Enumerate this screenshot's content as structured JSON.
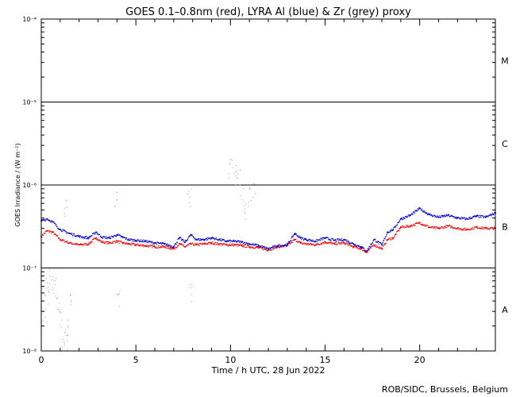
{
  "chart_data": {
    "type": "scatter",
    "title": "GOES 0.1–0.8nm (red), LYRA Al (blue) & Zr (grey) proxy",
    "xlabel": "Time / h UTC, 28 Jun 2022",
    "ylabel": "GOES Irradiance / (W m⁻²)",
    "xlim": [
      0,
      24
    ],
    "ylim": [
      1e-08,
      0.0001
    ],
    "yscale": "log",
    "x_ticks": [
      "0",
      "5",
      "10",
      "15",
      "20"
    ],
    "y_ticks": [
      "10⁻⁸",
      "10⁻⁷",
      "10⁻⁶",
      "10⁻⁵",
      "10⁻⁴"
    ],
    "flare_classes": [
      "A",
      "B",
      "C",
      "M"
    ],
    "class_lines": [
      1e-07,
      1e-06,
      1e-05
    ],
    "colors": {
      "goes": "#ff0000",
      "al": "#0000cc",
      "zr": "#999999"
    },
    "series": [
      {
        "color": "red",
        "x": [
          0.0,
          0.3,
          0.6,
          1.0,
          1.5,
          2.0,
          2.5,
          2.9,
          3.2,
          3.6,
          4.0,
          4.3,
          4.6,
          5.0,
          5.5,
          6.0,
          6.5,
          7.0,
          7.3,
          7.6,
          7.9,
          8.2,
          8.6,
          9.0,
          9.4,
          9.8,
          10.2,
          10.6,
          11.0,
          11.5,
          12.0,
          12.5,
          13.0,
          13.4,
          13.7,
          14.0,
          14.5,
          15.0,
          15.5,
          16.0,
          16.5,
          16.9,
          17.2,
          17.6,
          18.0,
          18.3,
          18.6,
          19.0,
          19.5,
          20.0,
          20.5,
          21.0,
          21.5,
          22.0,
          22.5,
          23.0,
          23.5,
          24.0
        ],
        "values": [
          2.4e-07,
          2.8e-07,
          2.7e-07,
          2.2e-07,
          2e-07,
          1.9e-07,
          1.95e-07,
          2.3e-07,
          2.05e-07,
          2e-07,
          2.1e-07,
          2e-07,
          1.95e-07,
          1.9e-07,
          1.85e-07,
          1.8e-07,
          1.8e-07,
          1.7e-07,
          1.95e-07,
          1.8e-07,
          1.95e-07,
          1.9e-07,
          1.95e-07,
          2e-07,
          1.95e-07,
          1.9e-07,
          1.9e-07,
          1.85e-07,
          1.8e-07,
          1.75e-07,
          1.65e-07,
          1.8e-07,
          1.85e-07,
          2.2e-07,
          2e-07,
          1.95e-07,
          1.9e-07,
          2.05e-07,
          1.95e-07,
          2e-07,
          1.8e-07,
          1.7e-07,
          1.55e-07,
          1.9e-07,
          1.7e-07,
          2.2e-07,
          2.3e-07,
          3.1e-07,
          3.2e-07,
          3.5e-07,
          3.1e-07,
          3e-07,
          3.2e-07,
          3e-07,
          2.9e-07,
          3.1e-07,
          3e-07,
          3e-07
        ]
      },
      {
        "color": "blue",
        "x": [
          0.0,
          0.3,
          0.6,
          1.0,
          1.5,
          2.0,
          2.5,
          2.9,
          3.2,
          3.6,
          4.0,
          4.3,
          4.6,
          5.0,
          5.5,
          6.0,
          6.5,
          7.0,
          7.3,
          7.6,
          7.9,
          8.2,
          8.6,
          9.0,
          9.4,
          9.8,
          10.2,
          10.6,
          11.0,
          11.5,
          12.0,
          12.5,
          13.0,
          13.4,
          13.7,
          14.0,
          14.5,
          15.0,
          15.5,
          16.0,
          16.5,
          16.9,
          17.2,
          17.6,
          18.0,
          18.3,
          18.6,
          19.0,
          19.5,
          20.0,
          20.5,
          21.0,
          21.5,
          22.0,
          22.5,
          23.0,
          23.5,
          24.0
        ],
        "values": [
          3.7e-07,
          3.9e-07,
          3.6e-07,
          2.9e-07,
          2.6e-07,
          2.4e-07,
          2.3e-07,
          2.7e-07,
          2.35e-07,
          2.3e-07,
          2.5e-07,
          2.35e-07,
          2.2e-07,
          2.15e-07,
          2.1e-07,
          2e-07,
          1.95e-07,
          1.8e-07,
          2.3e-07,
          2.05e-07,
          2.5e-07,
          2.2e-07,
          2.2e-07,
          2.3e-07,
          2.2e-07,
          2.1e-07,
          2.1e-07,
          2.05e-07,
          1.95e-07,
          1.85e-07,
          1.7e-07,
          1.85e-07,
          1.9e-07,
          2.6e-07,
          2.3e-07,
          2.2e-07,
          2.1e-07,
          2.3e-07,
          2.15e-07,
          2.2e-07,
          1.95e-07,
          1.8e-07,
          1.6e-07,
          2.2e-07,
          1.9e-07,
          2.7e-07,
          2.9e-07,
          3.9e-07,
          4.3e-07,
          5.2e-07,
          4.4e-07,
          4.1e-07,
          4.3e-07,
          4e-07,
          3.9e-07,
          4.2e-07,
          4.1e-07,
          4.6e-07
        ]
      },
      {
        "color": "grey",
        "x": [
          0.2,
          0.3,
          0.4,
          0.55,
          0.7,
          0.85,
          1.0,
          1.15,
          1.3,
          1.4,
          1.6,
          1.25,
          3.9,
          4.1,
          7.8,
          7.9,
          10.0,
          10.2,
          10.4,
          10.6,
          10.8,
          11.0,
          11.2
        ],
        "values": [
          3e-08,
          4.5e-08,
          6e-08,
          8e-08,
          6e-08,
          4e-08,
          2.5e-08,
          1.5e-08,
          1.2e-08,
          2e-08,
          4e-08,
          5.5e-07,
          6.5e-07,
          4.5e-08,
          7e-07,
          5e-08,
          1.6e-06,
          1.7e-06,
          1.2e-06,
          8e-07,
          5e-07,
          7e-07,
          9e-07
        ]
      }
    ]
  },
  "credit": "ROB/SIDC, Brussels, Belgium"
}
